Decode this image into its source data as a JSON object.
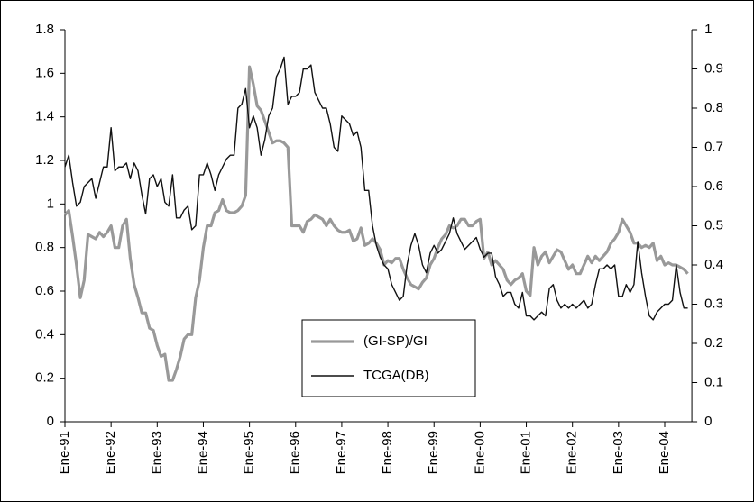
{
  "chart_data": {
    "type": "line",
    "categories": [
      "Ene-91",
      null,
      null,
      null,
      null,
      null,
      null,
      null,
      null,
      null,
      null,
      null,
      "Ene-92",
      null,
      null,
      null,
      null,
      null,
      null,
      null,
      null,
      null,
      null,
      null,
      "Ene-93",
      null,
      null,
      null,
      null,
      null,
      null,
      null,
      null,
      null,
      null,
      null,
      "Ene-94",
      null,
      null,
      null,
      null,
      null,
      null,
      null,
      null,
      null,
      null,
      null,
      "Ene-95",
      null,
      null,
      null,
      null,
      null,
      null,
      null,
      null,
      null,
      null,
      null,
      "Ene-96",
      null,
      null,
      null,
      null,
      null,
      null,
      null,
      null,
      null,
      null,
      null,
      "Ene-97",
      null,
      null,
      null,
      null,
      null,
      null,
      null,
      null,
      null,
      null,
      null,
      "Ene-98",
      null,
      null,
      null,
      null,
      null,
      null,
      null,
      null,
      null,
      null,
      null,
      "Ene-99",
      null,
      null,
      null,
      null,
      null,
      null,
      null,
      null,
      null,
      null,
      null,
      "Ene-00",
      null,
      null,
      null,
      null,
      null,
      null,
      null,
      null,
      null,
      null,
      null,
      "Ene-01",
      null,
      null,
      null,
      null,
      null,
      null,
      null,
      null,
      null,
      null,
      null,
      "Ene-02",
      null,
      null,
      null,
      null,
      null,
      null,
      null,
      null,
      null,
      null,
      null,
      "Ene-03",
      null,
      null,
      null,
      null,
      null,
      null,
      null,
      null,
      null,
      null,
      null,
      "Ene-04",
      null,
      null,
      null,
      null,
      null,
      null
    ],
    "series": [
      {
        "name": "(GI-SP)/GI",
        "color": "#999999",
        "axis": "y",
        "values": [
          0.95,
          0.97,
          0.85,
          0.72,
          0.57,
          0.65,
          0.86,
          0.85,
          0.84,
          0.87,
          0.85,
          0.87,
          0.9,
          0.8,
          0.8,
          0.9,
          0.93,
          0.75,
          0.63,
          0.57,
          0.5,
          0.5,
          0.43,
          0.42,
          0.35,
          0.3,
          0.31,
          0.19,
          0.19,
          0.24,
          0.3,
          0.38,
          0.4,
          0.4,
          0.57,
          0.65,
          0.8,
          0.9,
          0.9,
          0.96,
          0.97,
          1.02,
          0.97,
          0.96,
          0.96,
          0.97,
          0.99,
          1.04,
          1.63,
          1.55,
          1.45,
          1.43,
          1.38,
          1.33,
          1.28,
          1.29,
          1.29,
          1.28,
          1.26,
          0.9,
          0.9,
          0.9,
          0.87,
          0.92,
          0.93,
          0.95,
          0.94,
          0.93,
          0.9,
          0.93,
          0.9,
          0.88,
          0.87,
          0.87,
          0.88,
          0.83,
          0.84,
          0.89,
          0.81,
          0.82,
          0.84,
          0.82,
          0.79,
          0.72,
          0.74,
          0.73,
          0.75,
          0.75,
          0.7,
          0.66,
          0.63,
          0.62,
          0.61,
          0.64,
          0.66,
          0.72,
          0.75,
          0.8,
          0.84,
          0.86,
          0.9,
          0.89,
          0.9,
          0.93,
          0.93,
          0.9,
          0.9,
          0.92,
          0.93,
          0.75,
          0.78,
          0.72,
          0.74,
          0.72,
          0.7,
          0.65,
          0.63,
          0.65,
          0.66,
          0.68,
          0.6,
          0.58,
          0.8,
          0.72,
          0.76,
          0.78,
          0.73,
          0.76,
          0.79,
          0.78,
          0.74,
          0.7,
          0.72,
          0.68,
          0.68,
          0.72,
          0.76,
          0.73,
          0.76,
          0.74,
          0.76,
          0.78,
          0.82,
          0.84,
          0.87,
          0.93,
          0.9,
          0.87,
          0.82,
          0.82,
          0.8,
          0.81,
          0.8,
          0.82,
          0.74,
          0.76,
          0.72,
          0.73,
          0.72,
          0.72,
          0.71,
          0.7,
          0.68
        ]
      },
      {
        "name": "TCGA(DB)",
        "color": "#111111",
        "axis": "y2",
        "values": [
          0.65,
          0.68,
          0.61,
          0.55,
          0.56,
          0.6,
          0.61,
          0.62,
          0.57,
          0.61,
          0.65,
          0.65,
          0.75,
          0.64,
          0.65,
          0.65,
          0.66,
          0.62,
          0.66,
          0.64,
          0.58,
          0.53,
          0.62,
          0.63,
          0.6,
          0.62,
          0.56,
          0.55,
          0.63,
          0.52,
          0.52,
          0.54,
          0.55,
          0.49,
          0.5,
          0.63,
          0.63,
          0.66,
          0.63,
          0.59,
          0.63,
          0.65,
          0.67,
          0.68,
          0.68,
          0.8,
          0.81,
          0.85,
          0.75,
          0.78,
          0.75,
          0.68,
          0.72,
          0.78,
          0.8,
          0.88,
          0.9,
          0.93,
          0.81,
          0.83,
          0.83,
          0.84,
          0.9,
          0.9,
          0.91,
          0.84,
          0.82,
          0.8,
          0.8,
          0.76,
          0.7,
          0.69,
          0.78,
          0.77,
          0.76,
          0.73,
          0.74,
          0.7,
          0.59,
          0.59,
          0.5,
          0.45,
          0.42,
          0.4,
          0.39,
          0.35,
          0.33,
          0.31,
          0.32,
          0.4,
          0.45,
          0.48,
          0.45,
          0.4,
          0.38,
          0.43,
          0.45,
          0.43,
          0.44,
          0.46,
          0.48,
          0.52,
          0.48,
          0.46,
          0.44,
          0.45,
          0.46,
          0.47,
          0.44,
          0.42,
          0.43,
          0.43,
          0.37,
          0.35,
          0.32,
          0.33,
          0.33,
          0.3,
          0.29,
          0.33,
          0.27,
          0.27,
          0.26,
          0.27,
          0.28,
          0.27,
          0.34,
          0.35,
          0.31,
          0.29,
          0.3,
          0.29,
          0.3,
          0.29,
          0.3,
          0.31,
          0.29,
          0.3,
          0.35,
          0.39,
          0.39,
          0.4,
          0.39,
          0.4,
          0.32,
          0.32,
          0.35,
          0.33,
          0.35,
          0.46,
          0.38,
          0.32,
          0.27,
          0.26,
          0.28,
          0.29,
          0.3,
          0.3,
          0.31,
          0.4,
          0.33,
          0.29,
          0.29
        ]
      }
    ],
    "ylim": [
      0,
      1.8
    ],
    "yticks": [
      0,
      0.2,
      0.4,
      0.6,
      0.8,
      1,
      1.2,
      1.4,
      1.6,
      1.8
    ],
    "y2lim": [
      0,
      1
    ],
    "y2ticks": [
      0,
      0.1,
      0.2,
      0.3,
      0.4,
      0.5,
      0.6,
      0.7,
      0.8,
      0.9,
      1
    ],
    "grid": false,
    "legend": "center"
  }
}
